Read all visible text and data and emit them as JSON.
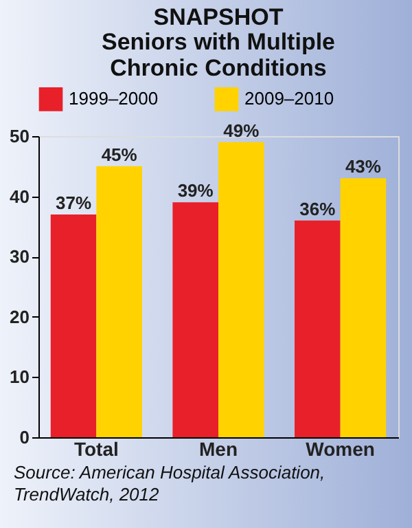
{
  "chart_data": {
    "type": "bar",
    "title": "SNAPSHOT",
    "subtitle": "Seniors with Multiple Chronic Conditions",
    "categories": [
      "Total",
      "Men",
      "Women"
    ],
    "series": [
      {
        "name": "1999–2000",
        "color": "#e8202a",
        "values": [
          37,
          39,
          36
        ],
        "value_labels": [
          "37%",
          "39%",
          "36%"
        ]
      },
      {
        "name": "2009–2010",
        "color": "#ffd200",
        "values": [
          45,
          49,
          43
        ],
        "value_labels": [
          "45%",
          "49%",
          "43%"
        ]
      }
    ],
    "ylim": [
      0,
      50
    ],
    "yticks": [
      0,
      10,
      20,
      30,
      40,
      50
    ],
    "legend": "top",
    "annotations": [
      "Source: American Hospital Association, TrendWatch, 2012"
    ]
  }
}
